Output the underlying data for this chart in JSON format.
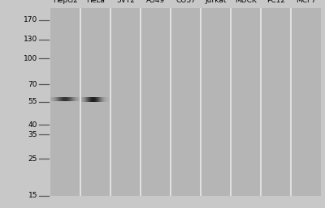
{
  "cell_lines": [
    "HepG2",
    "HeLa",
    "5VT2",
    "A549",
    "COS7",
    "Jurkat",
    "MDCK",
    "PC12",
    "MCF7"
  ],
  "mw_markers": [
    170,
    130,
    100,
    70,
    55,
    40,
    35,
    25,
    15
  ],
  "fig_bg": "#c8c8c8",
  "gel_bg": "#b8b8b8",
  "lane_bg": "#b5b5b5",
  "sep_color": "#d0d0d0",
  "band_color": "#222222",
  "band_mw": 57,
  "label_fontsize": 6.5,
  "marker_fontsize": 6.5,
  "log_min": 1.176,
  "log_max": 2.301
}
